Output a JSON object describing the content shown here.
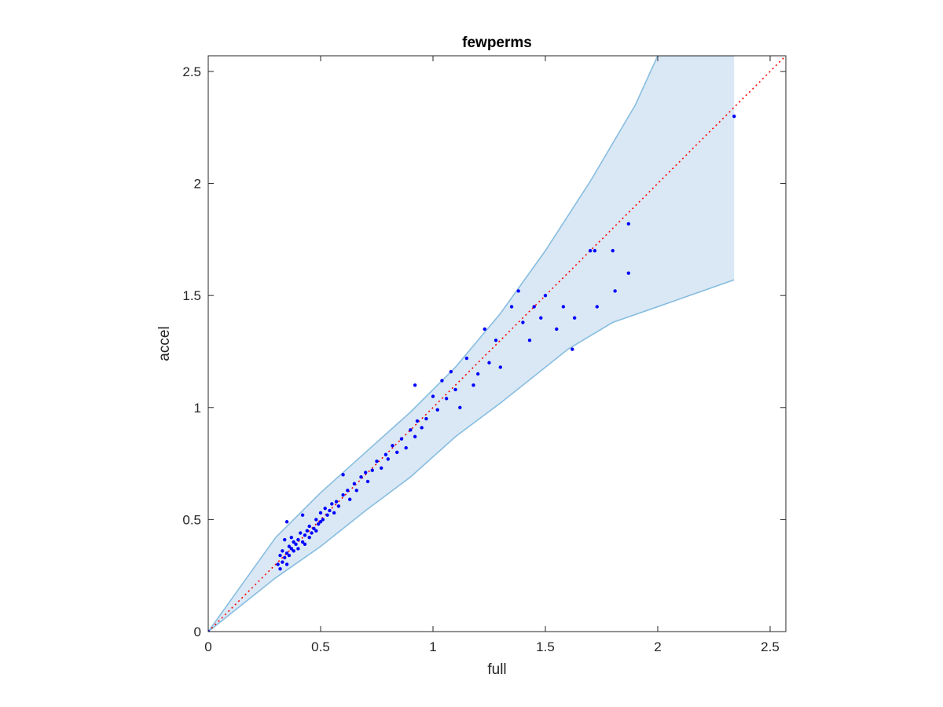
{
  "chart_data": {
    "type": "scatter",
    "title": "fewperms",
    "xlabel": "full",
    "ylabel": "accel",
    "xlim": [
      0,
      2.57
    ],
    "ylim": [
      0,
      2.57
    ],
    "xticks": [
      0,
      0.5,
      1,
      1.5,
      2,
      2.5
    ],
    "yticks": [
      0,
      0.5,
      1,
      1.5,
      2,
      2.5
    ],
    "xtick_labels": [
      "0",
      "0.5",
      "1",
      "1.5",
      "2",
      "2.5"
    ],
    "ytick_labels": [
      "0",
      "0.5",
      "1",
      "1.5",
      "2",
      "2.5"
    ],
    "grid": false,
    "legend": "none",
    "colors": {
      "points": "#0000ff",
      "band_fill": "#d9e8f4",
      "band_edge": "#88bde0",
      "identity_line": "#ff0000",
      "axes": "#262626"
    },
    "band": {
      "upper": {
        "x": [
          0,
          0.3,
          0.5,
          0.7,
          0.9,
          1.1,
          1.3,
          1.5,
          1.7,
          1.9,
          2.0,
          2.34
        ],
        "y": [
          0,
          0.42,
          0.62,
          0.8,
          0.98,
          1.18,
          1.42,
          1.7,
          2.01,
          2.35,
          2.57,
          2.57
        ]
      },
      "lower": {
        "x": [
          0,
          0.3,
          0.5,
          0.7,
          0.9,
          1.1,
          1.3,
          1.5,
          1.6,
          1.8,
          2.0,
          2.34
        ],
        "y": [
          0,
          0.24,
          0.38,
          0.54,
          0.69,
          0.87,
          1.02,
          1.18,
          1.26,
          1.38,
          1.45,
          1.57
        ]
      }
    },
    "identity_line": {
      "x": [
        0,
        2.57
      ],
      "y": [
        0,
        2.57
      ]
    },
    "points": {
      "x": [
        0,
        0.31,
        0.32,
        0.32,
        0.33,
        0.33,
        0.34,
        0.34,
        0.35,
        0.35,
        0.36,
        0.36,
        0.37,
        0.37,
        0.38,
        0.38,
        0.39,
        0.4,
        0.4,
        0.41,
        0.42,
        0.43,
        0.43,
        0.44,
        0.45,
        0.45,
        0.46,
        0.47,
        0.48,
        0.48,
        0.49,
        0.5,
        0.5,
        0.51,
        0.52,
        0.53,
        0.54,
        0.55,
        0.56,
        0.57,
        0.58,
        0.6,
        0.62,
        0.63,
        0.65,
        0.66,
        0.68,
        0.7,
        0.71,
        0.73,
        0.75,
        0.77,
        0.79,
        0.8,
        0.82,
        0.84,
        0.86,
        0.88,
        0.9,
        0.92,
        0.93,
        0.95,
        0.97,
        1.0,
        1.02,
        1.04,
        1.06,
        1.08,
        1.1,
        1.12,
        1.15,
        1.18,
        1.2,
        1.23,
        1.25,
        1.28,
        1.3,
        1.35,
        1.38,
        1.4,
        1.43,
        1.45,
        1.48,
        1.5,
        1.55,
        1.58,
        1.62,
        1.63,
        1.7,
        1.72,
        1.73,
        1.8,
        1.81,
        1.87,
        1.87,
        2.34,
        0.35,
        0.42,
        0.6,
        0.92
      ],
      "y": [
        0,
        0.3,
        0.34,
        0.28,
        0.36,
        0.31,
        0.33,
        0.41,
        0.35,
        0.3,
        0.38,
        0.34,
        0.37,
        0.42,
        0.36,
        0.4,
        0.39,
        0.41,
        0.37,
        0.44,
        0.4,
        0.43,
        0.39,
        0.45,
        0.42,
        0.47,
        0.44,
        0.46,
        0.5,
        0.45,
        0.48,
        0.49,
        0.53,
        0.5,
        0.55,
        0.52,
        0.54,
        0.57,
        0.53,
        0.58,
        0.56,
        0.61,
        0.63,
        0.59,
        0.66,
        0.63,
        0.69,
        0.71,
        0.67,
        0.72,
        0.76,
        0.73,
        0.79,
        0.77,
        0.83,
        0.8,
        0.86,
        0.82,
        0.9,
        0.87,
        0.94,
        0.91,
        0.95,
        1.05,
        0.99,
        1.12,
        1.04,
        1.16,
        1.08,
        1.0,
        1.22,
        1.1,
        1.15,
        1.35,
        1.2,
        1.3,
        1.18,
        1.45,
        1.52,
        1.38,
        1.3,
        1.45,
        1.4,
        1.5,
        1.35,
        1.45,
        1.26,
        1.4,
        1.7,
        1.7,
        1.45,
        1.7,
        1.52,
        1.82,
        1.6,
        2.3,
        0.49,
        0.52,
        0.7,
        1.1
      ]
    }
  }
}
